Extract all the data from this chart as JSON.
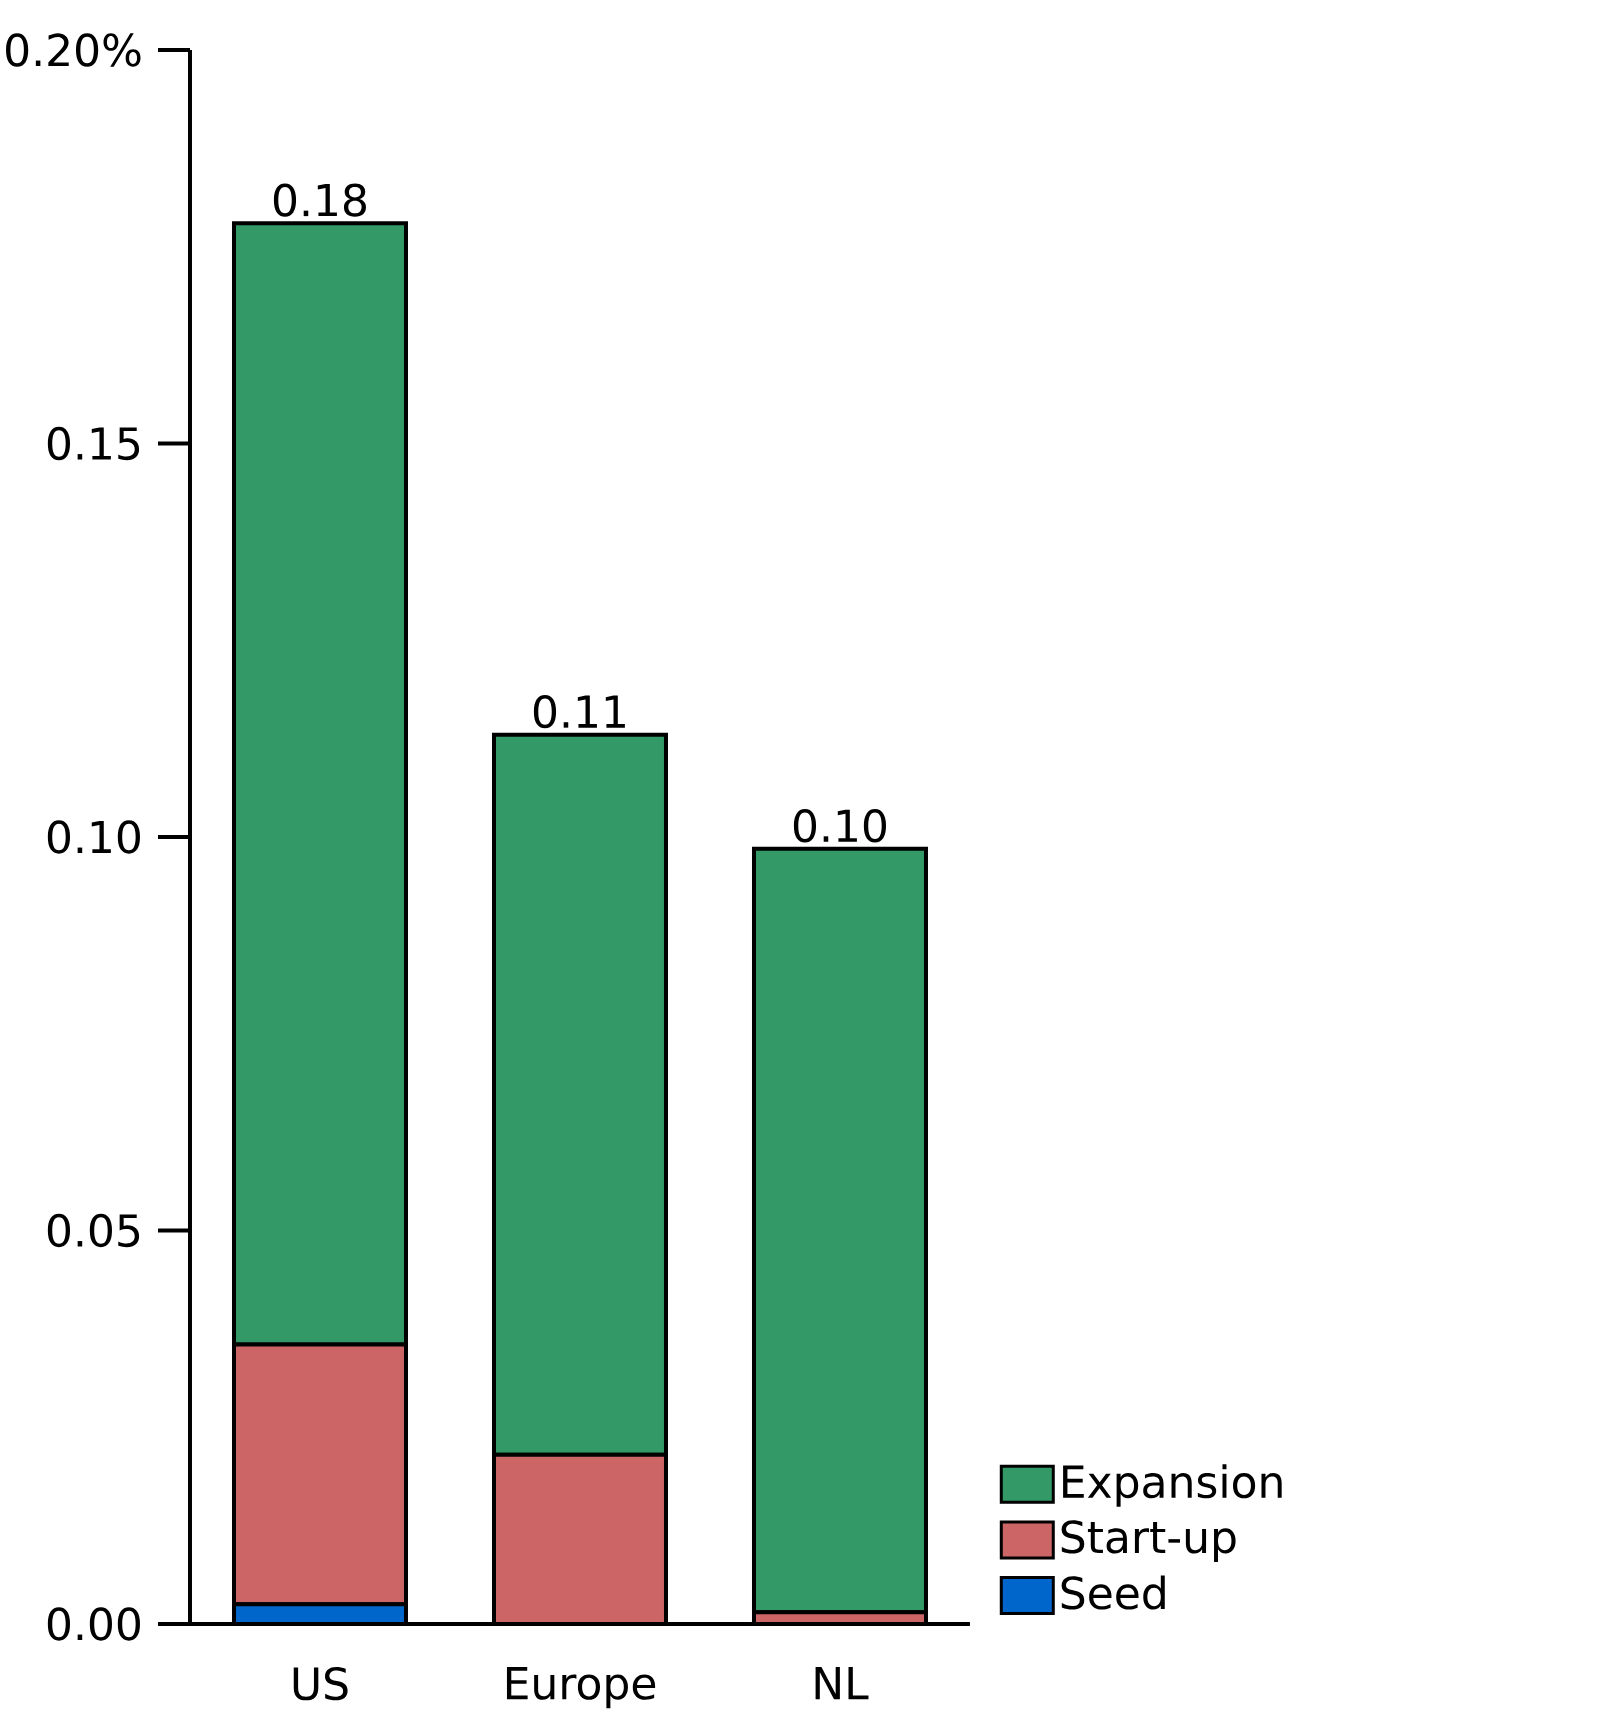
{
  "chart_data": {
    "type": "bar",
    "stacked": true,
    "categories": [
      "US",
      "Europe",
      "NL"
    ],
    "series": [
      {
        "name": "Seed",
        "color": "#0066cc",
        "values": [
          0.0025,
          0,
          0
        ]
      },
      {
        "name": "Start-up",
        "color": "#cc6666",
        "values": [
          0.033,
          0.0215,
          0.0015
        ]
      },
      {
        "name": "Expansion",
        "color": "#339966",
        "values": [
          0.1425,
          0.0915,
          0.097
        ]
      }
    ],
    "totals": [
      "0.18",
      "0.11",
      "0.10"
    ],
    "ylim": [
      0,
      0.2
    ],
    "yticks": [
      {
        "value": 0,
        "label": "0.00"
      },
      {
        "value": 0.05,
        "label": "0.05"
      },
      {
        "value": 0.1,
        "label": "0.10"
      },
      {
        "value": 0.15,
        "label": "0.15"
      },
      {
        "value": 0.2,
        "label": "0.20%"
      }
    ],
    "grid": false,
    "legend": "bottom right"
  }
}
